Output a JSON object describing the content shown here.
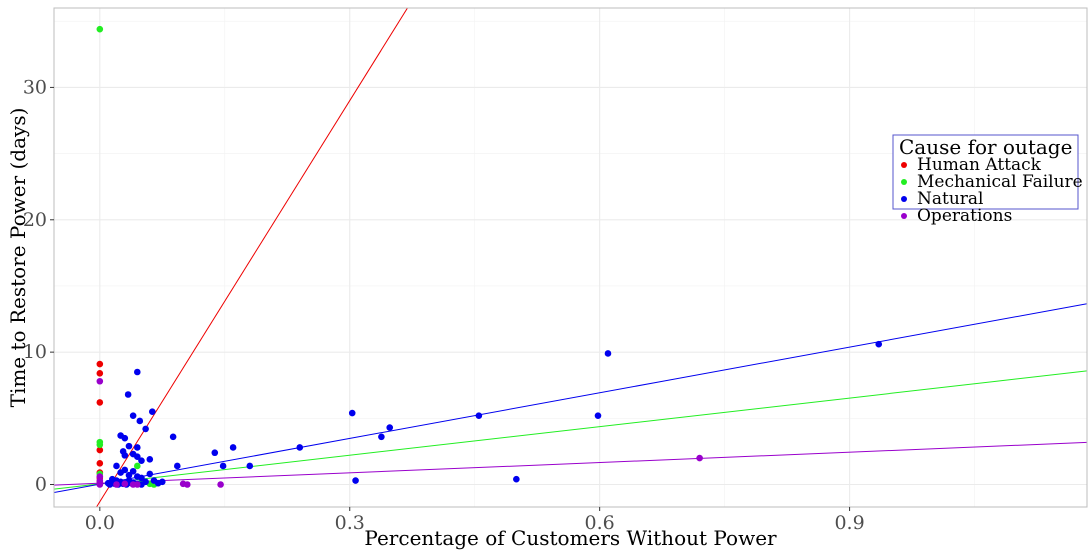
{
  "chart_data": {
    "type": "scatter",
    "title": "",
    "xlabel": "Percentage of Customers Without Power",
    "ylabel": "Time to Restore Power (days)",
    "xlim": [
      -0.055,
      1.185
    ],
    "ylim": [
      -1.7,
      36.0
    ],
    "xticks": [
      0.0,
      0.3,
      0.6,
      0.9
    ],
    "xtick_labels": [
      "0.0",
      "0.3",
      "0.6",
      "0.9"
    ],
    "yticks": [
      0,
      10,
      20,
      30
    ],
    "ytick_labels": [
      "0",
      "10",
      "20",
      "30"
    ],
    "grid": true,
    "legend": {
      "title": "Cause for outage",
      "position": "right"
    },
    "series": [
      {
        "name": "Human Attack",
        "color": "#ee0000",
        "fit": {
          "intercept": -1.3,
          "slope": 101.0
        },
        "points": [
          [
            0,
            9.1
          ],
          [
            0,
            8.4
          ],
          [
            0,
            6.2
          ],
          [
            0,
            2.6
          ],
          [
            0,
            1.6
          ],
          [
            0,
            0.9
          ],
          [
            0,
            0.5
          ],
          [
            0,
            0.2
          ],
          [
            0,
            0.05
          ]
        ]
      },
      {
        "name": "Mechanical Failure",
        "color": "#22ee22",
        "fit": {
          "intercept": 0.05,
          "slope": 7.2
        },
        "points": [
          [
            0,
            34.4
          ],
          [
            0,
            3.2
          ],
          [
            0,
            3.0
          ],
          [
            0,
            0.8
          ],
          [
            0,
            0.1
          ],
          [
            0.045,
            1.4
          ],
          [
            0.05,
            0.2
          ],
          [
            0.06,
            0.05
          ],
          [
            0.065,
            0.0
          ],
          [
            0.07,
            0.1
          ]
        ]
      },
      {
        "name": "Natural",
        "color": "#0000ee",
        "fit": {
          "intercept": 0.03,
          "slope": 11.5
        },
        "points": [
          [
            0.935,
            10.6
          ],
          [
            0.61,
            9.9
          ],
          [
            0.598,
            5.2
          ],
          [
            0.455,
            5.2
          ],
          [
            0.5,
            0.4
          ],
          [
            0.348,
            4.3
          ],
          [
            0.338,
            3.6
          ],
          [
            0.303,
            5.4
          ],
          [
            0.307,
            0.3
          ],
          [
            0.24,
            2.8
          ],
          [
            0.18,
            1.4
          ],
          [
            0.16,
            2.8
          ],
          [
            0.148,
            1.4
          ],
          [
            0.138,
            2.4
          ],
          [
            0.093,
            1.4
          ],
          [
            0.088,
            3.6
          ],
          [
            0.045,
            8.5
          ],
          [
            0.034,
            6.8
          ],
          [
            0.063,
            5.5
          ],
          [
            0.04,
            5.2
          ],
          [
            0.048,
            4.8
          ],
          [
            0.055,
            4.2
          ],
          [
            0.025,
            3.7
          ],
          [
            0.03,
            3.5
          ],
          [
            0.035,
            2.9
          ],
          [
            0.045,
            2.8
          ],
          [
            0.028,
            2.5
          ],
          [
            0.04,
            2.3
          ],
          [
            0.045,
            2.1
          ],
          [
            0.03,
            2.2
          ],
          [
            0.05,
            1.8
          ],
          [
            0.06,
            1.9
          ],
          [
            0.02,
            1.4
          ],
          [
            0.03,
            1.1
          ],
          [
            0.04,
            1.0
          ],
          [
            0.025,
            0.9
          ],
          [
            0.035,
            0.7
          ],
          [
            0.045,
            0.6
          ],
          [
            0.05,
            0.5
          ],
          [
            0.06,
            0.8
          ],
          [
            0.015,
            0.4
          ],
          [
            0.02,
            0.3
          ],
          [
            0.025,
            0.2
          ],
          [
            0.03,
            0.1
          ],
          [
            0.035,
            0.3
          ],
          [
            0.04,
            0.15
          ],
          [
            0.045,
            0.05
          ],
          [
            0.055,
            0.2
          ],
          [
            0.065,
            0.3
          ],
          [
            0.01,
            0.1
          ],
          [
            0.012,
            0.0
          ],
          [
            0.018,
            0.05
          ],
          [
            0.022,
            0.0
          ],
          [
            0.028,
            0.05
          ],
          [
            0.032,
            0.0
          ],
          [
            0.038,
            0.1
          ],
          [
            0.05,
            0.0
          ],
          [
            0.07,
            0.1
          ],
          [
            0.075,
            0.2
          ]
        ]
      },
      {
        "name": "Operations",
        "color": "#9900cc",
        "fit": {
          "intercept": 0.1,
          "slope": 2.6
        },
        "points": [
          [
            0,
            7.8
          ],
          [
            0,
            0.6
          ],
          [
            0,
            0.3
          ],
          [
            0,
            0.1
          ],
          [
            0,
            0.0
          ],
          [
            0.72,
            2.0
          ],
          [
            0.145,
            0.0
          ],
          [
            0.1,
            0.05
          ],
          [
            0.105,
            0.0
          ],
          [
            0.02,
            0.0
          ],
          [
            0.03,
            0.05
          ],
          [
            0.04,
            0.0
          ],
          [
            0.045,
            0.0
          ]
        ]
      }
    ]
  }
}
